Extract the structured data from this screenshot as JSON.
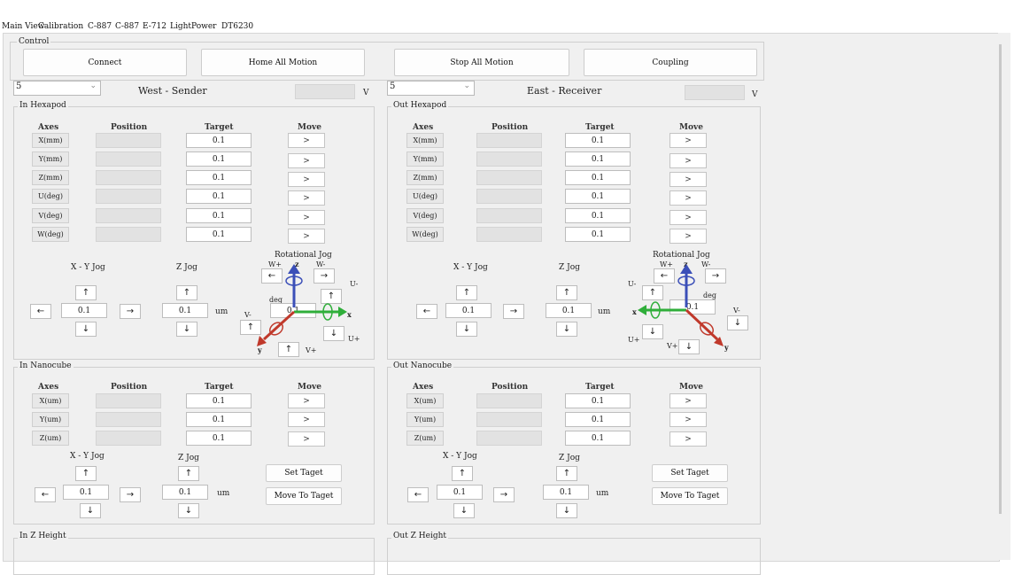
{
  "tabs": [
    "Main View",
    "Calibration",
    "C-887",
    "C-887",
    "E-712",
    "LightPower",
    "DT6230"
  ],
  "control": {
    "title": "Control",
    "connect": "Connect",
    "home_all": "Home All Motion",
    "stop_all": "Stop All Motion",
    "coupling": "Coupling"
  },
  "west": {
    "combo_value": "5",
    "title": "West - Sender",
    "unit": "V",
    "hexapod": {
      "title": "In Hexapod",
      "headers": {
        "axes": "Axes",
        "position": "Position",
        "target": "Target",
        "move": "Move"
      },
      "axes": [
        {
          "label": "X(mm)",
          "target": "0.1",
          "move": ">"
        },
        {
          "label": "Y(mm)",
          "target": "0.1",
          "move": ">"
        },
        {
          "label": "Z(mm)",
          "target": "0.1",
          "move": ">"
        },
        {
          "label": "U(deg)",
          "target": "0.1",
          "move": ">"
        },
        {
          "label": "V(deg)",
          "target": "0.1",
          "move": ">"
        },
        {
          "label": "W(deg)",
          "target": "0.1",
          "move": ">"
        }
      ],
      "xy_jog": "X - Y Jog",
      "z_jog": "Z Jog",
      "rot_jog": "Rotational Jog",
      "xy_value": "0.1",
      "z_value": "0.1",
      "unit": "um",
      "rot_value": "0.1",
      "deg": "deg",
      "labels": {
        "wp": "W+",
        "wm": "W-",
        "um": "U-",
        "up": "U+",
        "vm": "V-",
        "vp": "V+",
        "z": "z",
        "x": "x",
        "y": "y"
      }
    },
    "nanocube": {
      "title": "In Nanocube",
      "headers": {
        "axes": "Axes",
        "position": "Position",
        "target": "Target",
        "move": "Move"
      },
      "axes": [
        {
          "label": "X(um)",
          "target": "0.1",
          "move": ">"
        },
        {
          "label": "Y(um)",
          "target": "0.1",
          "move": ">"
        },
        {
          "label": "Z(um)",
          "target": "0.1",
          "move": ">"
        }
      ],
      "xy_jog": "X - Y Jog",
      "z_jog": "Z Jog",
      "xy_value": "0.1",
      "z_value": "0.1",
      "unit": "um",
      "set_target": "Set Taget",
      "move_to_target": "Move To Taget"
    },
    "zheight": {
      "title": "In Z Height"
    }
  },
  "east": {
    "combo_value": "5",
    "title": "East - Receiver",
    "unit": "V",
    "hexapod": {
      "title": "Out Hexapod",
      "headers": {
        "axes": "Axes",
        "position": "Position",
        "target": "Target",
        "move": "Move"
      },
      "axes": [
        {
          "label": "X(mm)",
          "target": "0.1",
          "move": ">"
        },
        {
          "label": "Y(mm)",
          "target": "0.1",
          "move": ">"
        },
        {
          "label": "Z(mm)",
          "target": "0.1",
          "move": ">"
        },
        {
          "label": "U(deg)",
          "target": "0.1",
          "move": ">"
        },
        {
          "label": "V(deg)",
          "target": "0.1",
          "move": ">"
        },
        {
          "label": "W(deg)",
          "target": "0.1",
          "move": ">"
        }
      ],
      "xy_jog": "X - Y Jog",
      "z_jog": "Z Jog",
      "rot_jog": "Rotational Jog",
      "xy_value": "0.1",
      "z_value": "0.1",
      "unit": "um",
      "rot_value": "0.1",
      "deg": "deg",
      "labels": {
        "wp": "W+",
        "wm": "W-",
        "um": "U-",
        "up": "U+",
        "vm": "V-",
        "vp": "V+",
        "z": "z",
        "x": "x",
        "y": "y"
      }
    },
    "nanocube": {
      "title": "Out Nanocube",
      "headers": {
        "axes": "Axes",
        "position": "Position",
        "target": "Target",
        "move": "Move"
      },
      "axes": [
        {
          "label": "X(um)",
          "target": "0.1",
          "move": ">"
        },
        {
          "label": "Y(um)",
          "target": "0.1",
          "move": ">"
        },
        {
          "label": "Z(um)",
          "target": "0.1",
          "move": ">"
        }
      ],
      "xy_jog": "X - Y Jog",
      "z_jog": "Z Jog",
      "xy_value": "0.1",
      "z_value": "0.1",
      "unit": "um",
      "set_target": "Set Taget",
      "move_to_target": "Move To Taget"
    },
    "zheight": {
      "title": "Out Z Height"
    }
  },
  "arrows": {
    "up": "↑",
    "down": "↓",
    "left": "←",
    "right": "→"
  },
  "colors": {
    "z_axis": "#3b4fb8",
    "x_axis": "#2fae3a",
    "y_axis": "#c0392b"
  }
}
